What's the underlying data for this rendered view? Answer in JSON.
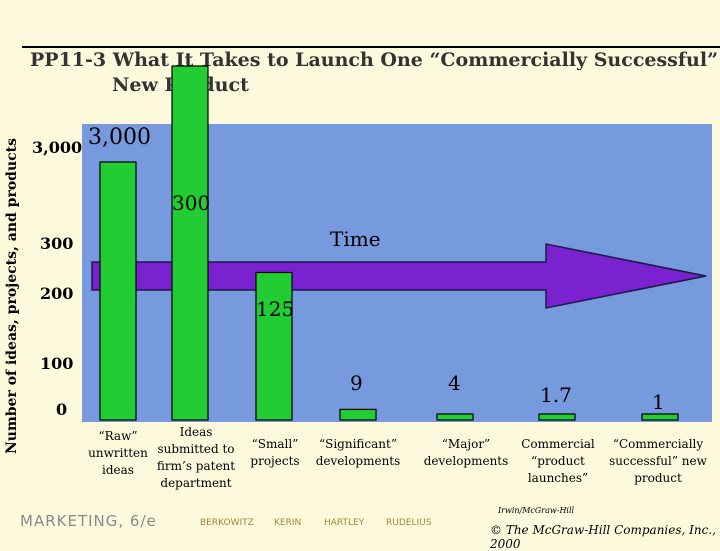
{
  "slide": {
    "title_line1": "PP11-3  What It Takes to Launch One “Commercially Successful”",
    "title_line2": "New Product",
    "footer_left": "MARKETING, 6/e",
    "authors": [
      "BERKOWITZ",
      "KERIN",
      "HARTLEY",
      "RUDELIUS"
    ],
    "publisher": "Irwin/McGraw-Hill",
    "copyright": "© The McGraw-Hill Companies, Inc., 2000"
  },
  "chart_data": {
    "type": "bar",
    "title": "PP11-3  What It Takes to Launch One “Commercially Successful” New Product",
    "ylabel": "Number of ideas, projects, and products",
    "xlabel": "",
    "arrow_label": "Time",
    "categories": [
      "“Raw” unwritten ideas",
      "Ideas submitted to firm’s patent department",
      "“Small” projects",
      "“Significant” developments",
      "“Major” developments",
      "Commercial “product launches”",
      "“Commercially successful” new product"
    ],
    "values": [
      3000,
      300,
      125,
      9,
      4,
      1.7,
      1
    ],
    "value_labels": [
      "3,000",
      "300",
      "125",
      "9",
      "4",
      "1.7",
      "1"
    ],
    "y_ticks": [
      "0",
      "100",
      "200",
      "300",
      "3,000"
    ],
    "y_scale": "broken",
    "colors": {
      "bar": "#22cc33",
      "plot_bg": "#7799dd",
      "arrow": "#7a22d0",
      "page_bg": "#fdf9dc"
    },
    "grid": false,
    "legend": "none"
  }
}
